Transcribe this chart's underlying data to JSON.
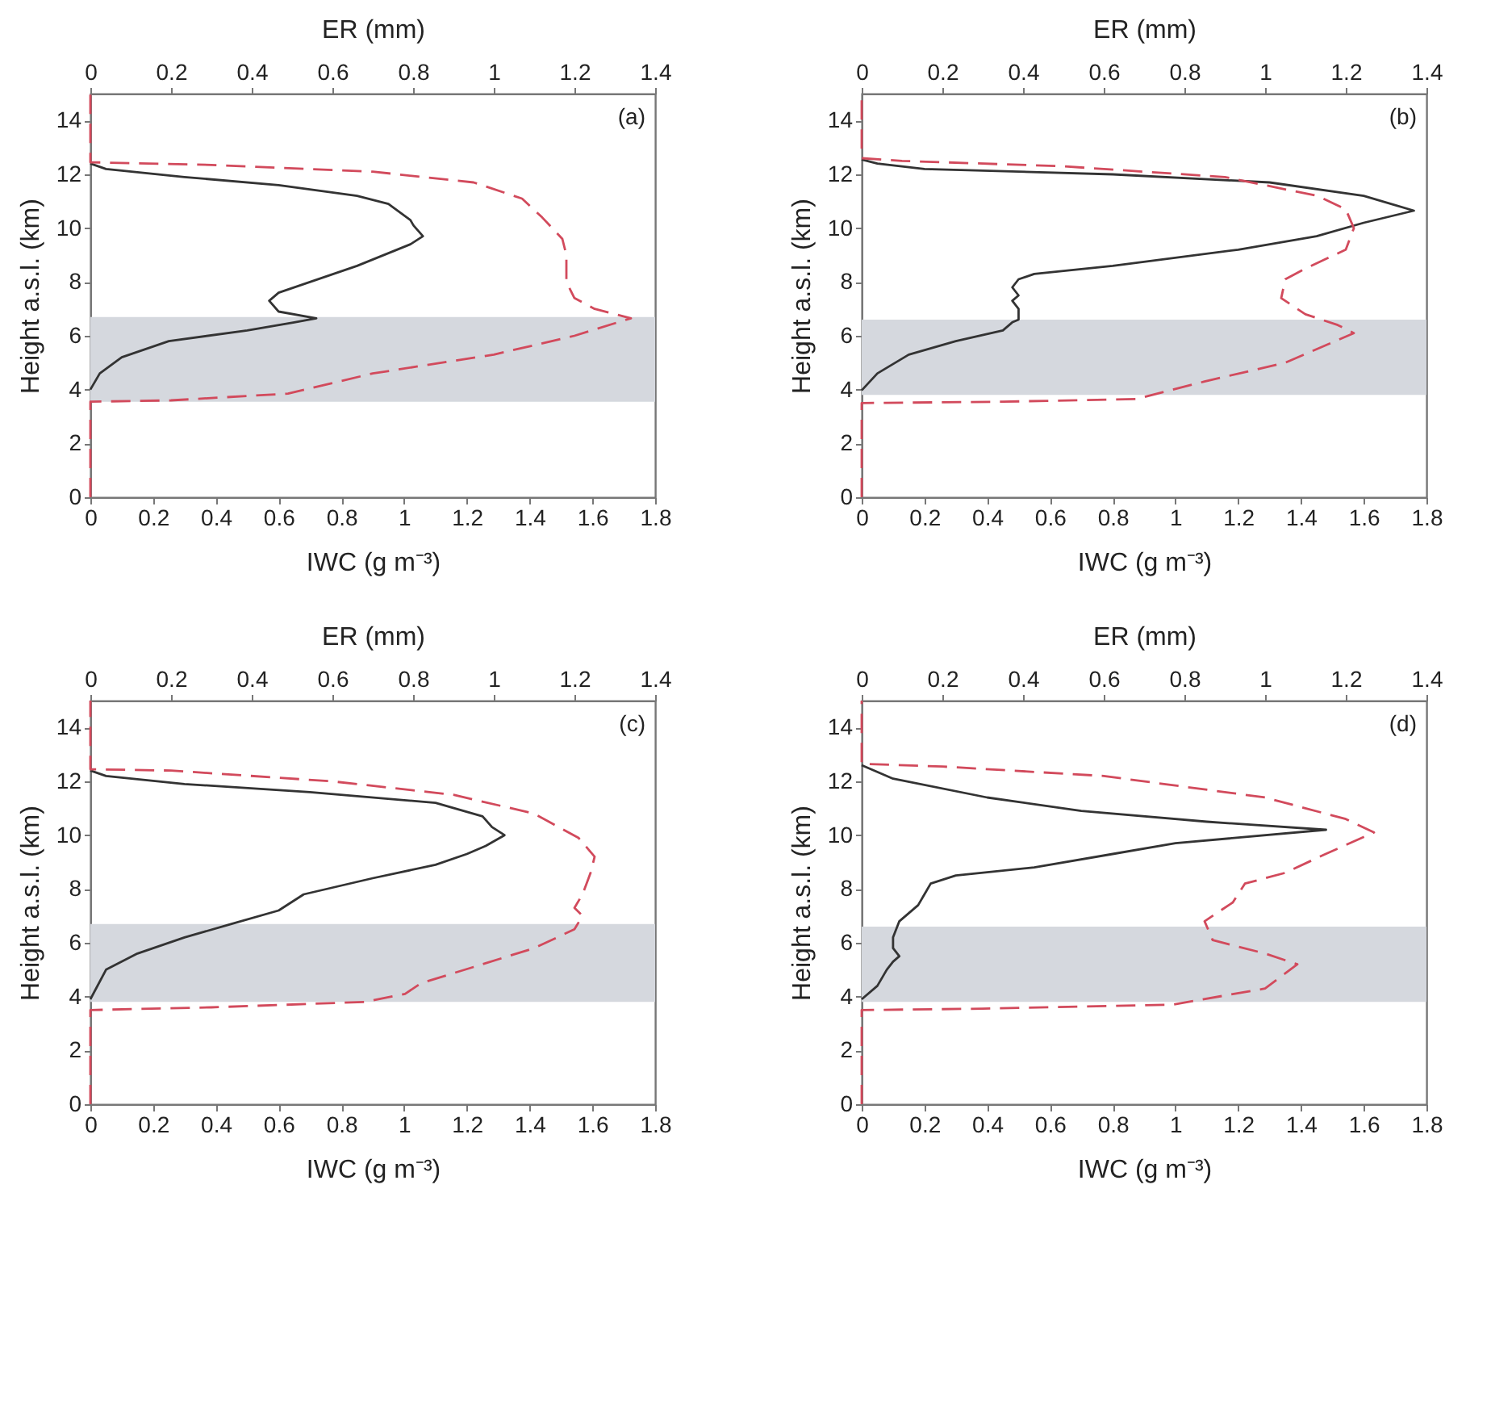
{
  "chart_data": [
    {
      "type": "line",
      "annotations": [
        "(a)"
      ],
      "xlabel": "IWC (g m⁻³)",
      "x2label": "ER (mm)",
      "ylabel": "Height a.s.l. (km)",
      "xlim": [
        0,
        1.8
      ],
      "xticks": [
        0,
        0.2,
        0.4,
        0.6,
        0.8,
        1,
        1.2,
        1.4,
        1.6,
        1.8
      ],
      "x2lim": [
        0,
        1.4
      ],
      "x2ticks": [
        0,
        0.2,
        0.4,
        0.6,
        0.8,
        1,
        1.2,
        1.4
      ],
      "ylim": [
        0,
        15
      ],
      "yticks": [
        0,
        2,
        4,
        6,
        8,
        10,
        12,
        14
      ],
      "grid": false,
      "bands": [
        {
          "axis": "y",
          "from": 3.55,
          "to": 6.7,
          "color": "#d5d8de"
        }
      ],
      "series": [
        {
          "color": "#333333",
          "line_style": "solid",
          "x": [
            0,
            0.03,
            0.1,
            0.25,
            0.5,
            0.65,
            0.72,
            0.6,
            0.57,
            0.6,
            0.85,
            1.02,
            1.06,
            1.03,
            1.02,
            0.95,
            0.85,
            0.6,
            0.3,
            0.05,
            0
          ],
          "values": [
            4.0,
            4.6,
            5.2,
            5.8,
            6.2,
            6.5,
            6.65,
            6.9,
            7.3,
            7.6,
            8.6,
            9.4,
            9.7,
            10.1,
            10.3,
            10.9,
            11.2,
            11.6,
            11.9,
            12.2,
            12.4
          ]
        },
        {
          "color": "#d24a5c",
          "line_style": "dashed",
          "axis": "x2",
          "x": [
            0,
            0,
            0.2,
            0.49,
            0.7,
            1.0,
            1.2,
            1.34,
            1.25,
            1.2,
            1.18,
            1.18,
            1.17,
            1.12,
            1.07,
            0.95,
            0.7,
            0.3,
            0,
            0
          ],
          "values": [
            0,
            3.55,
            3.6,
            3.85,
            4.6,
            5.3,
            6.0,
            6.65,
            7.0,
            7.4,
            8.0,
            9.0,
            9.6,
            10.4,
            11.1,
            11.7,
            12.1,
            12.35,
            12.45,
            15
          ]
        }
      ]
    },
    {
      "type": "line",
      "annotations": [
        "(b)"
      ],
      "xlabel": "IWC (g m⁻³)",
      "x2label": "ER (mm)",
      "ylabel": "Height a.s.l. (km)",
      "xlim": [
        0,
        1.8
      ],
      "xticks": [
        0,
        0.2,
        0.4,
        0.6,
        0.8,
        1,
        1.2,
        1.4,
        1.6,
        1.8
      ],
      "x2lim": [
        0,
        1.4
      ],
      "x2ticks": [
        0,
        0.2,
        0.4,
        0.6,
        0.8,
        1,
        1.2,
        1.4
      ],
      "ylim": [
        0,
        15
      ],
      "yticks": [
        0,
        2,
        4,
        6,
        8,
        10,
        12,
        14
      ],
      "grid": false,
      "bands": [
        {
          "axis": "y",
          "from": 3.8,
          "to": 6.6,
          "color": "#d5d8de"
        }
      ],
      "series": [
        {
          "color": "#333333",
          "line_style": "solid",
          "x": [
            0,
            0.05,
            0.15,
            0.3,
            0.45,
            0.48,
            0.5,
            0.5,
            0.48,
            0.5,
            0.48,
            0.5,
            0.55,
            0.8,
            1.2,
            1.45,
            1.6,
            1.76,
            1.6,
            1.3,
            0.8,
            0.2,
            0.05,
            0
          ],
          "values": [
            3.97,
            4.6,
            5.3,
            5.8,
            6.2,
            6.5,
            6.6,
            7.0,
            7.3,
            7.5,
            7.8,
            8.1,
            8.3,
            8.6,
            9.2,
            9.7,
            10.2,
            10.65,
            11.2,
            11.7,
            12.0,
            12.2,
            12.4,
            12.55
          ]
        },
        {
          "color": "#d24a5c",
          "line_style": "dashed",
          "axis": "x2",
          "x": [
            0,
            0,
            0.35,
            0.68,
            0.85,
            1.05,
            1.22,
            1.18,
            1.1,
            1.04,
            1.05,
            1.1,
            1.2,
            1.22,
            1.2,
            1.13,
            0.9,
            0.5,
            0.1,
            0,
            0
          ],
          "values": [
            0,
            3.5,
            3.55,
            3.65,
            4.3,
            5.0,
            6.1,
            6.4,
            6.8,
            7.4,
            8.1,
            8.5,
            9.2,
            10.0,
            10.7,
            11.2,
            11.9,
            12.3,
            12.5,
            12.6,
            15
          ]
        }
      ]
    },
    {
      "type": "line",
      "annotations": [
        "(c)"
      ],
      "xlabel": "IWC (g m⁻³)",
      "x2label": "ER (mm)",
      "ylabel": "Height a.s.l. (km)",
      "xlim": [
        0,
        1.8
      ],
      "xticks": [
        0,
        0.2,
        0.4,
        0.6,
        0.8,
        1,
        1.2,
        1.4,
        1.6,
        1.8
      ],
      "x2lim": [
        0,
        1.4
      ],
      "x2ticks": [
        0,
        0.2,
        0.4,
        0.6,
        0.8,
        1,
        1.2,
        1.4
      ],
      "ylim": [
        0,
        15
      ],
      "yticks": [
        0,
        2,
        4,
        6,
        8,
        10,
        12,
        14
      ],
      "grid": false,
      "bands": [
        {
          "axis": "y",
          "from": 3.8,
          "to": 6.7,
          "color": "#d5d8de"
        }
      ],
      "series": [
        {
          "color": "#333333",
          "line_style": "solid",
          "x": [
            0,
            0.05,
            0.15,
            0.3,
            0.45,
            0.6,
            0.68,
            0.9,
            1.1,
            1.2,
            1.26,
            1.32,
            1.28,
            1.25,
            1.1,
            0.7,
            0.3,
            0.05,
            0
          ],
          "values": [
            3.9,
            5.0,
            5.6,
            6.2,
            6.7,
            7.2,
            7.8,
            8.4,
            8.9,
            9.3,
            9.6,
            10.0,
            10.3,
            10.7,
            11.2,
            11.6,
            11.9,
            12.2,
            12.4
          ]
        },
        {
          "color": "#d24a5c",
          "line_style": "dashed",
          "axis": "x2",
          "x": [
            0,
            0,
            0.3,
            0.68,
            0.78,
            0.82,
            0.95,
            1.1,
            1.2,
            1.22,
            1.2,
            1.22,
            1.23,
            1.24,
            1.25,
            1.21,
            1.1,
            0.9,
            0.6,
            0.2,
            0,
            0
          ],
          "values": [
            0,
            3.5,
            3.6,
            3.8,
            4.1,
            4.5,
            5.1,
            5.8,
            6.5,
            7.0,
            7.3,
            7.8,
            8.2,
            8.6,
            9.2,
            9.9,
            10.8,
            11.5,
            12.0,
            12.4,
            12.45,
            15
          ]
        }
      ]
    },
    {
      "type": "line",
      "annotations": [
        "(d)"
      ],
      "xlabel": "IWC (g m⁻³)",
      "x2label": "ER (mm)",
      "ylabel": "Height a.s.l. (km)",
      "xlim": [
        0,
        1.8
      ],
      "xticks": [
        0,
        0.2,
        0.4,
        0.6,
        0.8,
        1,
        1.2,
        1.4,
        1.6,
        1.8
      ],
      "x2lim": [
        0,
        1.4
      ],
      "x2ticks": [
        0,
        0.2,
        0.4,
        0.6,
        0.8,
        1,
        1.2,
        1.4
      ],
      "ylim": [
        0,
        15
      ],
      "yticks": [
        0,
        2,
        4,
        6,
        8,
        10,
        12,
        14
      ],
      "grid": false,
      "bands": [
        {
          "axis": "y",
          "from": 3.8,
          "to": 6.6,
          "color": "#d5d8de"
        }
      ],
      "series": [
        {
          "color": "#333333",
          "line_style": "solid",
          "x": [
            0,
            0.05,
            0.08,
            0.1,
            0.12,
            0.1,
            0.1,
            0.12,
            0.15,
            0.18,
            0.2,
            0.22,
            0.3,
            0.55,
            0.8,
            1.0,
            1.48,
            1.1,
            0.7,
            0.4,
            0.1,
            0
          ],
          "values": [
            3.9,
            4.4,
            5.0,
            5.3,
            5.5,
            5.8,
            6.2,
            6.8,
            7.1,
            7.4,
            7.8,
            8.2,
            8.5,
            8.8,
            9.3,
            9.7,
            10.2,
            10.5,
            10.9,
            11.4,
            12.1,
            12.6
          ]
        },
        {
          "color": "#d24a5c",
          "line_style": "dashed",
          "axis": "x2",
          "x": [
            0,
            0,
            0.3,
            0.77,
            1.0,
            1.08,
            1.0,
            0.87,
            0.85,
            0.92,
            0.95,
            1.05,
            1.15,
            1.27,
            1.2,
            1.0,
            0.6,
            0.2,
            0,
            0
          ],
          "values": [
            0,
            3.5,
            3.55,
            3.7,
            4.3,
            5.2,
            5.6,
            6.1,
            6.8,
            7.5,
            8.2,
            8.6,
            9.3,
            10.1,
            10.6,
            11.4,
            12.2,
            12.55,
            12.65,
            15
          ]
        }
      ]
    }
  ]
}
